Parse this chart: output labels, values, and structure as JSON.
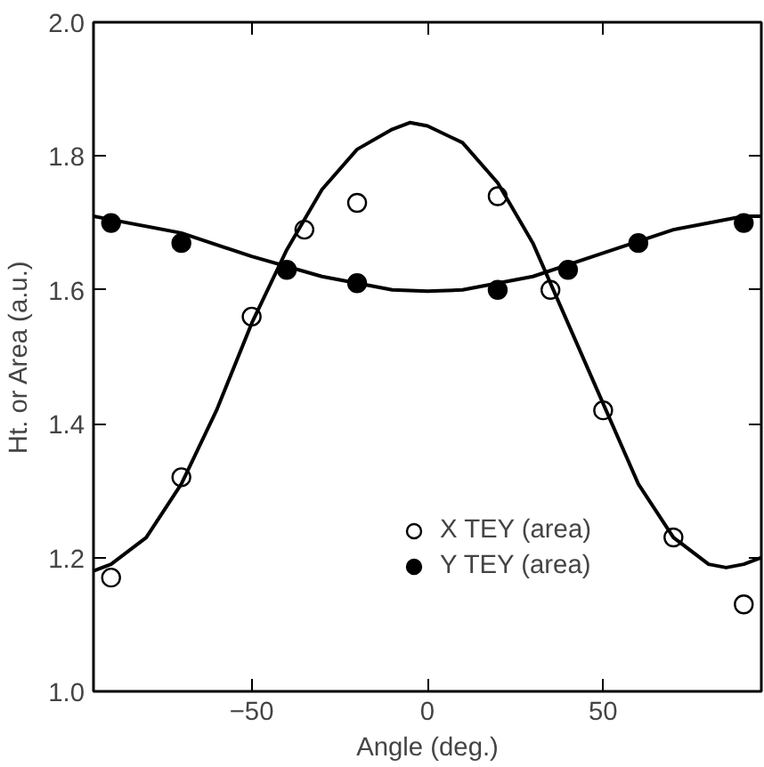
{
  "chart_data": {
    "type": "scatter",
    "xlabel": "Angle (deg.)",
    "ylabel": "Ht. or Area (a.u.)",
    "xlim": [
      -95,
      95
    ],
    "ylim": [
      1.0,
      2.0
    ],
    "xticks": [
      -50,
      0,
      50
    ],
    "yticks": [
      {
        "value": 1.0,
        "label": "1.0"
      },
      1.2,
      1.4,
      1.6,
      1.8,
      {
        "value": 2.0,
        "label": "2.0"
      }
    ],
    "grid": false,
    "legend": "bottom",
    "series": [
      {
        "name": "X TEY (area)",
        "marker": "circle",
        "color": "#ffffff",
        "x": [
          -90,
          -70,
          -50,
          -35,
          -20,
          20,
          35,
          50,
          70,
          90
        ],
        "values": [
          1.17,
          1.32,
          1.56,
          1.69,
          1.73,
          1.74,
          1.6,
          1.42,
          1.23,
          1.13
        ]
      },
      {
        "name": "Y TEY (area)",
        "marker": "circle",
        "color": "#000000",
        "x": [
          -90,
          -70,
          -40,
          -20,
          20,
          40,
          60,
          90
        ],
        "values": [
          1.7,
          1.67,
          1.63,
          1.61,
          1.6,
          1.63,
          1.67,
          1.7
        ]
      },
      {
        "type": "line",
        "color": "#000000",
        "x": [
          -95,
          -90,
          -80,
          -70,
          -60,
          -50,
          -40,
          -30,
          -20,
          -10,
          -5,
          0,
          10,
          20,
          30,
          40,
          50,
          60,
          70,
          80,
          85,
          90,
          95
        ],
        "values": [
          1.18,
          1.19,
          1.23,
          1.31,
          1.42,
          1.55,
          1.66,
          1.75,
          1.81,
          1.84,
          1.85,
          1.845,
          1.82,
          1.76,
          1.67,
          1.55,
          1.43,
          1.31,
          1.23,
          1.19,
          1.185,
          1.19,
          1.2
        ]
      },
      {
        "type": "line",
        "color": "#000000",
        "x": [
          -95,
          -90,
          -70,
          -50,
          -30,
          -10,
          0,
          10,
          30,
          50,
          70,
          90,
          95
        ],
        "values": [
          1.71,
          1.705,
          1.685,
          1.65,
          1.62,
          1.6,
          1.598,
          1.6,
          1.62,
          1.655,
          1.69,
          1.71,
          1.71
        ]
      }
    ]
  }
}
